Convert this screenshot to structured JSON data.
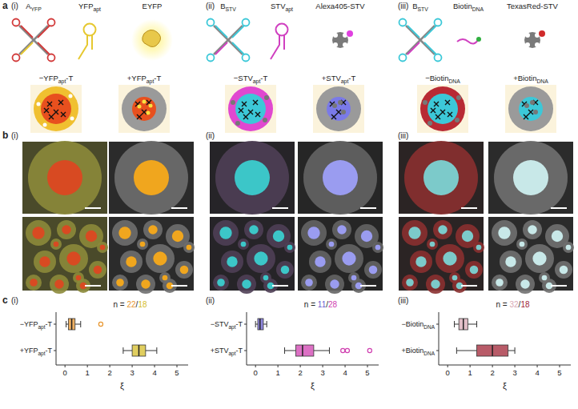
{
  "panel_labels": [
    "a",
    "b",
    "c"
  ],
  "columns": [
    {
      "label": "(i)",
      "schematic_labels": [
        [
          "A",
          "YFP"
        ],
        [
          "YFP",
          "apt"
        ],
        [
          "EYFP"
        ]
      ]
    },
    {
      "label": "(ii)",
      "schematic_labels": [
        [
          "B",
          "STV"
        ],
        [
          "STV",
          "apt"
        ],
        [
          "Alexa405-STV"
        ]
      ]
    },
    {
      "label": "(iii)",
      "schematic_labels": [
        [
          "B",
          "STV"
        ],
        [
          "Biotin",
          "DNA"
        ],
        [
          "TexasRed-STV"
        ]
      ]
    }
  ],
  "chart_data": [
    {
      "type": "box",
      "orientation": "horizontal",
      "categories": [
        [
          "−YFP",
          "apt",
          "-T"
        ],
        [
          "+YFP",
          "apt",
          "-T"
        ]
      ],
      "boxes": [
        {
          "min": 0.05,
          "q1": 0.15,
          "median": 0.3,
          "q3": 0.45,
          "max": 0.7,
          "outliers": [
            1.6
          ]
        },
        {
          "min": 2.6,
          "q1": 3.0,
          "median": 3.3,
          "q3": 3.6,
          "max": 4.1,
          "outliers": []
        }
      ],
      "colors": [
        "#e8962e",
        "#d6bd2a"
      ],
      "n": [
        22,
        18
      ],
      "n_prefix": "n = ",
      "n_separator": "/",
      "x_label": "ξ",
      "xlim": [
        -0.4,
        5.5
      ],
      "xticks": [
        0,
        1,
        2,
        3,
        4,
        5
      ]
    },
    {
      "type": "box",
      "orientation": "horizontal",
      "categories": [
        [
          "−STV",
          "apt",
          "-T"
        ],
        [
          "+STV",
          "apt",
          "-T"
        ]
      ],
      "boxes": [
        {
          "min": 0.0,
          "q1": 0.1,
          "median": 0.2,
          "q3": 0.35,
          "max": 0.5,
          "outliers": []
        },
        {
          "min": 1.3,
          "q1": 1.8,
          "median": 2.1,
          "q3": 2.6,
          "max": 3.3,
          "outliers": [
            3.9,
            4.1,
            5.1
          ]
        }
      ],
      "colors": [
        "#6a5fd0",
        "#d040b0"
      ],
      "n": [
        11,
        28
      ],
      "n_prefix": "n = ",
      "n_separator": "/",
      "x_label": "ξ",
      "xlim": [
        -0.4,
        5.5
      ],
      "xticks": [
        0,
        1,
        2,
        3,
        4,
        5
      ]
    },
    {
      "type": "box",
      "orientation": "horizontal",
      "categories": [
        [
          "−Biotin",
          "DNA"
        ],
        [
          "+Biotin",
          "DNA"
        ]
      ],
      "boxes": [
        {
          "min": 0.3,
          "q1": 0.5,
          "median": 0.7,
          "q3": 0.9,
          "max": 1.3,
          "outliers": []
        },
        {
          "min": 0.4,
          "q1": 1.3,
          "median": 2.0,
          "q3": 2.7,
          "max": 3.0,
          "outliers": []
        }
      ],
      "colors": [
        "#d8a8b4",
        "#a02436"
      ],
      "n": [
        32,
        18
      ],
      "n_prefix": "n = ",
      "n_separator": "/",
      "x_label": "ξ",
      "xlim": [
        -0.4,
        5.5
      ],
      "xticks": [
        0,
        1,
        2,
        3,
        4,
        5
      ]
    }
  ]
}
